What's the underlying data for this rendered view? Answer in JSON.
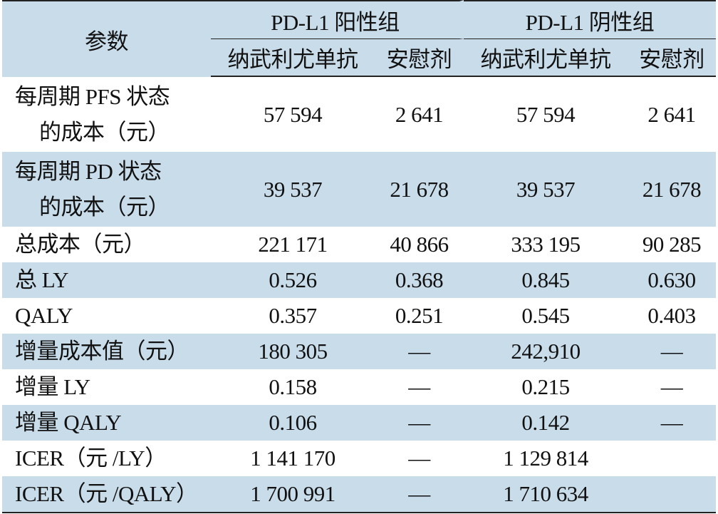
{
  "table": {
    "header": {
      "param": "参数",
      "groups": [
        "PD-L1 阳性组",
        "PD-L1 阴性组"
      ],
      "subheaders": [
        "纳武利尤单抗",
        "安慰剂",
        "纳武利尤单抗",
        "安慰剂"
      ]
    },
    "rows": [
      {
        "label": [
          "每周期 PFS 状态",
          "的成本（元）"
        ],
        "values": [
          "57 594",
          "2 641",
          "57 594",
          "2 641"
        ]
      },
      {
        "label": [
          "每周期 PD 状态",
          "的成本（元）"
        ],
        "values": [
          "39 537",
          "21 678",
          "39 537",
          "21 678"
        ]
      },
      {
        "label": [
          "总成本（元）"
        ],
        "values": [
          "221 171",
          "40 866",
          "333 195",
          "90 285"
        ]
      },
      {
        "label": [
          "总 LY"
        ],
        "values": [
          "0.526",
          "0.368",
          "0.845",
          "0.630"
        ]
      },
      {
        "label": [
          "QALY"
        ],
        "values": [
          "0.357",
          "0.251",
          "0.545",
          "0.403"
        ]
      },
      {
        "label": [
          "增量成本值（元）"
        ],
        "values": [
          "180 305",
          "—",
          "242,910",
          "—"
        ]
      },
      {
        "label": [
          "增量 LY"
        ],
        "values": [
          "0.158",
          "—",
          "0.215",
          "—"
        ]
      },
      {
        "label": [
          "增量 QALY"
        ],
        "values": [
          "0.106",
          "—",
          "0.142",
          "—"
        ]
      },
      {
        "label": [
          "ICER（元 /LY）"
        ],
        "values": [
          "1 141 170",
          "—",
          "1 129 814",
          null
        ]
      },
      {
        "label": [
          "ICER（元 /QALY）"
        ],
        "values": [
          "1 700 991",
          "—",
          "1 710 634",
          null
        ]
      }
    ]
  }
}
